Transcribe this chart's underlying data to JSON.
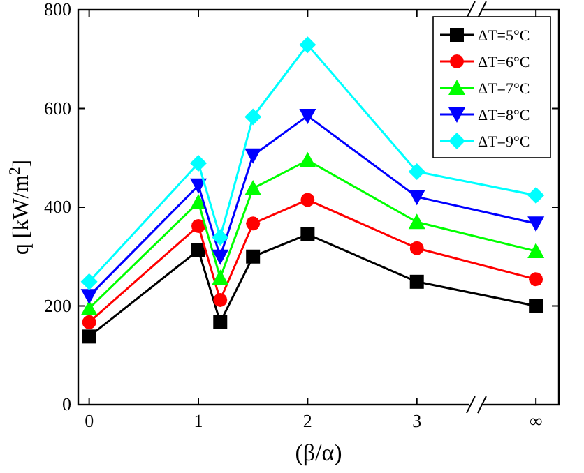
{
  "chart_data": {
    "type": "line",
    "xlabel": "(β/α)",
    "ylabel": "q  [kW/m$^{2}$]",
    "x": [
      0,
      1,
      1.2,
      1.5,
      2,
      3,
      4.09
    ],
    "xlim": [
      -0.1,
      4.3
    ],
    "xticks": [
      0,
      1,
      2,
      3,
      {
        "value": 4.09,
        "label": "∞"
      }
    ],
    "ylim": [
      0,
      800
    ],
    "yticks": [
      0,
      200,
      400,
      600,
      800
    ],
    "legend": "top right",
    "grid": false,
    "series": [
      {
        "name": "ΔT=5°C",
        "color": "#000000",
        "marker": "square",
        "values": [
          138,
          313,
          167,
          300,
          345,
          249,
          200
        ]
      },
      {
        "name": "ΔT=6°C",
        "color": "#ff0000",
        "marker": "circle",
        "values": [
          167,
          362,
          212,
          367,
          415,
          317,
          254
        ]
      },
      {
        "name": "ΔT=7°C",
        "color": "#00ff00",
        "marker": "triangle",
        "values": [
          195,
          410,
          257,
          438,
          495,
          370,
          311
        ]
      },
      {
        "name": "ΔT=8°C",
        "color": "#0000ff",
        "marker": "triangle-down",
        "values": [
          220,
          444,
          300,
          505,
          585,
          421,
          367
        ]
      },
      {
        "name": "ΔT=9°C",
        "color": "#00ffff",
        "marker": "diamond",
        "values": [
          249,
          489,
          339,
          583,
          729,
          472,
          424
        ]
      }
    ]
  }
}
